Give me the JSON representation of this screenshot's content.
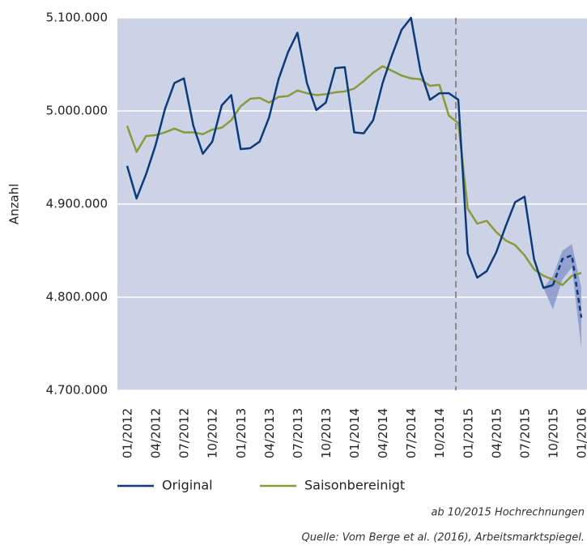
{
  "chart_data": {
    "type": "line",
    "y_label": "Anzahl",
    "categories": [
      "01/2012",
      null,
      null,
      "04/2012",
      null,
      null,
      "07/2012",
      null,
      null,
      "10/2012",
      null,
      null,
      "01/2013",
      null,
      null,
      "04/2013",
      null,
      null,
      "07/2013",
      null,
      null,
      "10/2013",
      null,
      null,
      "01/2014",
      null,
      null,
      "04/2014",
      null,
      null,
      "07/2014",
      null,
      null,
      "10/2014",
      null,
      null,
      "01/2015",
      null,
      null,
      "04/2015",
      null,
      null,
      "07/2015",
      null,
      null,
      "10/2015",
      null,
      null,
      "01/2016"
    ],
    "series": [
      {
        "name": "Original",
        "color": "#0d3a7a",
        "dash_from": 45,
        "values": [
          4941000,
          4906000,
          4932000,
          4963000,
          5002000,
          5030000,
          5035000,
          4984000,
          4954000,
          4967000,
          5006000,
          5017000,
          4959000,
          4960000,
          4967000,
          4993000,
          5034000,
          5063000,
          5084000,
          5030000,
          5001000,
          5009000,
          5046000,
          5047000,
          4977000,
          4976000,
          4990000,
          5030000,
          5060000,
          5087000,
          5100000,
          5043000,
          5012000,
          5019000,
          5019000,
          5012000,
          4847000,
          4821000,
          4828000,
          4848000,
          4876000,
          4902000,
          4908000,
          4841000,
          4810000,
          4813000,
          4841000,
          4845000,
          4778000
        ]
      },
      {
        "name": "Saisonbereinigt",
        "color": "#8a9a3a",
        "values": [
          4984000,
          4956000,
          4973000,
          4974000,
          4977000,
          4981000,
          4977000,
          4977000,
          4975000,
          4980000,
          4982000,
          4990000,
          5005000,
          5013000,
          5014000,
          5009000,
          5015000,
          5016000,
          5022000,
          5019000,
          5017000,
          5018000,
          5020000,
          5021000,
          5024000,
          5032000,
          5041000,
          5048000,
          5043000,
          5038000,
          5035000,
          5034000,
          5027000,
          5028000,
          4995000,
          4987000,
          4895000,
          4879000,
          4882000,
          4870000,
          4861000,
          4856000,
          4845000,
          4830000,
          4823000,
          4819000,
          4813000,
          4823000,
          4826000
        ]
      }
    ],
    "band": {
      "color": "#7f8fc8",
      "upper": [
        null,
        null,
        null,
        null,
        null,
        null,
        null,
        null,
        null,
        null,
        null,
        null,
        null,
        null,
        null,
        null,
        null,
        null,
        null,
        null,
        null,
        null,
        null,
        null,
        null,
        null,
        null,
        null,
        null,
        null,
        null,
        null,
        null,
        null,
        null,
        null,
        null,
        null,
        null,
        null,
        null,
        null,
        null,
        null,
        4810000,
        4823000,
        4850000,
        4857000,
        4810000
      ],
      "lower": [
        null,
        null,
        null,
        null,
        null,
        null,
        null,
        null,
        null,
        null,
        null,
        null,
        null,
        null,
        null,
        null,
        null,
        null,
        null,
        null,
        null,
        null,
        null,
        null,
        null,
        null,
        null,
        null,
        null,
        null,
        null,
        null,
        null,
        null,
        null,
        null,
        null,
        null,
        null,
        null,
        null,
        null,
        null,
        null,
        4810000,
        4787000,
        4819000,
        4832000,
        4745000
      ]
    },
    "ylim": [
      4700000,
      5100000
    ],
    "yticks": [
      {
        "value": 4700000,
        "label": "4.700.000"
      },
      {
        "value": 4800000,
        "label": "4.800.000"
      },
      {
        "value": 4900000,
        "label": "4.900.000"
      },
      {
        "value": 5000000,
        "label": "5.000.000"
      },
      {
        "value": 5100000,
        "label": "5.100.000"
      }
    ],
    "grid": true,
    "plot_color": "#cdd3e6",
    "annotations": [
      "ab 10/2015 Hochrechnungen",
      "Quelle: Vom Berge et al. (2016), Arbeitsmarktspiegel."
    ]
  }
}
